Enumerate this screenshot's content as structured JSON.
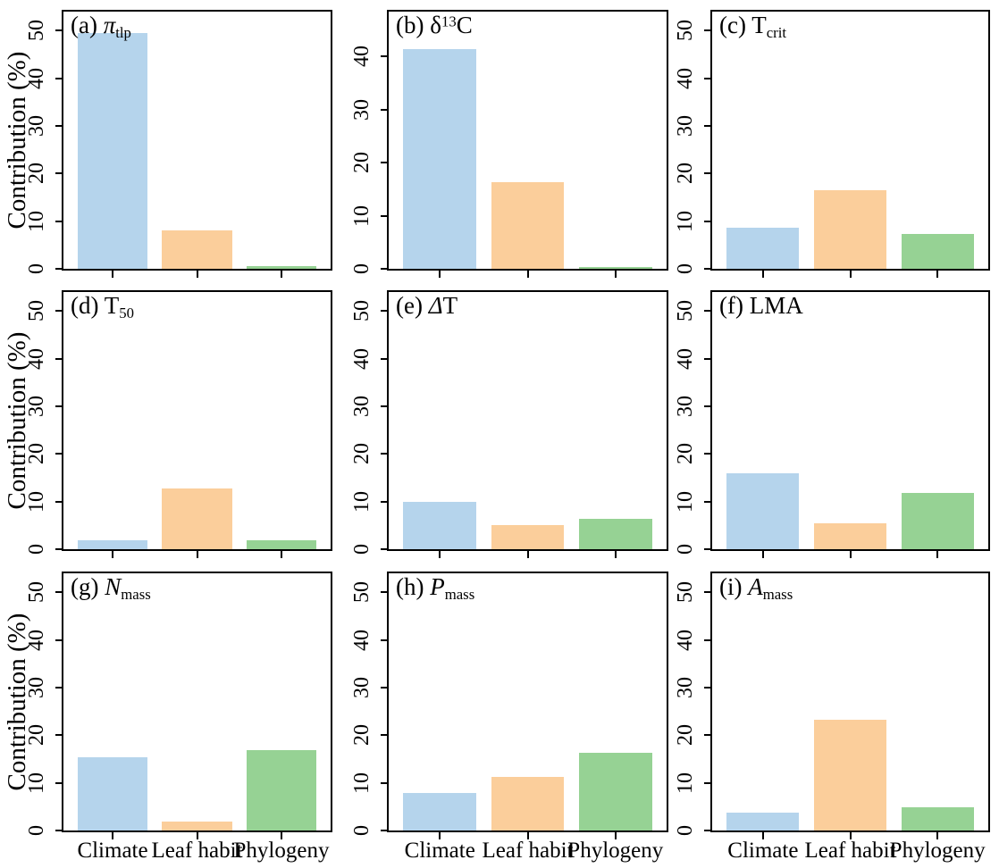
{
  "figure": {
    "y_axis_title": "Contribution (%)",
    "categories": [
      "Climate",
      "Leaf habit",
      "Phylogeny"
    ],
    "bar_colors": [
      "#B5D4EC",
      "#FBCE9B",
      "#96D294"
    ],
    "frame_color": "#000000",
    "background_color": "#FFFFFF"
  },
  "chart_data": [
    {
      "type": "bar",
      "panel": "a",
      "tag": "(a)",
      "trait": "pi_tlp",
      "title_segments": [
        {
          "text": "π",
          "style": "italic"
        },
        {
          "text": "tlp",
          "style": "sub"
        }
      ],
      "categories": [
        "Climate",
        "Leaf habit",
        "Phylogeny"
      ],
      "values": [
        49.5,
        8.0,
        0.6
      ],
      "ylabel": "Contribution (%)",
      "ylim": [
        0,
        54
      ],
      "yticks": [
        0,
        10,
        20,
        30,
        40,
        50
      ]
    },
    {
      "type": "bar",
      "panel": "b",
      "tag": "(b)",
      "trait": "delta13C",
      "title_segments": [
        {
          "text": "δ",
          "style": "normal"
        },
        {
          "text": "13",
          "style": "sup"
        },
        {
          "text": "C",
          "style": "normal"
        }
      ],
      "categories": [
        "Climate",
        "Leaf habit",
        "Phylogeny"
      ],
      "values": [
        41.5,
        16.4,
        0.3
      ],
      "ylabel": "",
      "ylim": [
        0,
        48.5
      ],
      "yticks": [
        0,
        10,
        20,
        30,
        40
      ]
    },
    {
      "type": "bar",
      "panel": "c",
      "tag": "(c)",
      "trait": "T_crit",
      "title_segments": [
        {
          "text": "T",
          "style": "normal"
        },
        {
          "text": "crit",
          "style": "sub"
        }
      ],
      "categories": [
        "Climate",
        "Leaf habit",
        "Phylogeny"
      ],
      "values": [
        8.6,
        16.5,
        7.3
      ],
      "ylabel": "",
      "ylim": [
        0,
        54
      ],
      "yticks": [
        0,
        10,
        20,
        30,
        40,
        50
      ]
    },
    {
      "type": "bar",
      "panel": "d",
      "tag": "(d)",
      "trait": "T_50",
      "title_segments": [
        {
          "text": "T",
          "style": "normal"
        },
        {
          "text": "50",
          "style": "sub"
        }
      ],
      "categories": [
        "Climate",
        "Leaf habit",
        "Phylogeny"
      ],
      "values": [
        1.9,
        12.8,
        1.8
      ],
      "ylabel": "Contribution (%)",
      "ylim": [
        0,
        54
      ],
      "yticks": [
        0,
        10,
        20,
        30,
        40,
        50
      ]
    },
    {
      "type": "bar",
      "panel": "e",
      "tag": "(e)",
      "trait": "delta_T",
      "title_segments": [
        {
          "text": "Δ",
          "style": "italic"
        },
        {
          "text": "T",
          "style": "normal"
        }
      ],
      "categories": [
        "Climate",
        "Leaf habit",
        "Phylogeny"
      ],
      "values": [
        10.0,
        5.1,
        6.3
      ],
      "ylabel": "",
      "ylim": [
        0,
        54
      ],
      "yticks": [
        0,
        10,
        20,
        30,
        40,
        50
      ]
    },
    {
      "type": "bar",
      "panel": "f",
      "tag": "(f)",
      "trait": "LMA",
      "title_segments": [
        {
          "text": "LMA",
          "style": "normal"
        }
      ],
      "categories": [
        "Climate",
        "Leaf habit",
        "Phylogeny"
      ],
      "values": [
        16.0,
        5.5,
        11.8
      ],
      "ylabel": "",
      "ylim": [
        0,
        54
      ],
      "yticks": [
        0,
        10,
        20,
        30,
        40,
        50
      ]
    },
    {
      "type": "bar",
      "panel": "g",
      "tag": "(g)",
      "trait": "N_mass",
      "title_segments": [
        {
          "text": "N",
          "style": "italic"
        },
        {
          "text": "mass",
          "style": "sub"
        }
      ],
      "categories": [
        "Climate",
        "Leaf habit",
        "Phylogeny"
      ],
      "values": [
        15.4,
        1.8,
        16.8
      ],
      "ylabel": "Contribution (%)",
      "ylim": [
        0,
        54
      ],
      "yticks": [
        0,
        10,
        20,
        30,
        40,
        50
      ]
    },
    {
      "type": "bar",
      "panel": "h",
      "tag": "(h)",
      "trait": "P_mass",
      "title_segments": [
        {
          "text": "P",
          "style": "italic"
        },
        {
          "text": "mass",
          "style": "sub"
        }
      ],
      "categories": [
        "Climate",
        "Leaf habit",
        "Phylogeny"
      ],
      "values": [
        7.9,
        11.2,
        16.3
      ],
      "ylabel": "",
      "ylim": [
        0,
        54
      ],
      "yticks": [
        0,
        10,
        20,
        30,
        40,
        50
      ]
    },
    {
      "type": "bar",
      "panel": "i",
      "tag": "(i)",
      "trait": "A_mass",
      "title_segments": [
        {
          "text": "A",
          "style": "italic"
        },
        {
          "text": "mass",
          "style": "sub"
        }
      ],
      "categories": [
        "Climate",
        "Leaf habit",
        "Phylogeny"
      ],
      "values": [
        3.8,
        23.3,
        4.8
      ],
      "ylabel": "",
      "ylim": [
        0,
        54
      ],
      "yticks": [
        0,
        10,
        20,
        30,
        40,
        50
      ]
    }
  ]
}
